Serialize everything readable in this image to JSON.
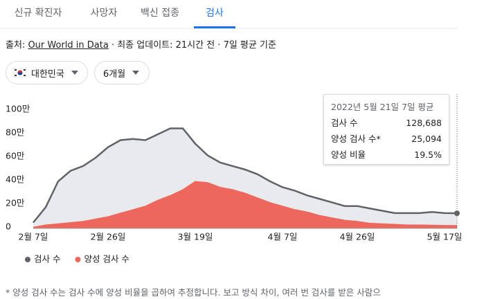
{
  "tabs": [
    "신규 확진자",
    "사망자",
    "백신 접종",
    "검사"
  ],
  "source": {
    "prefix": "출처:",
    "link": "Our World in Data",
    "suffix": "· 최종 업데이트: 21시간 전 · 7일 평균 기준"
  },
  "filters": [
    "대한민국",
    "6개월"
  ],
  "tooltip": {
    "title": "2022년 5월 21일 7일 평균",
    "rows": [
      {
        "label": "검사 수",
        "value": "128,688"
      },
      {
        "label": "양성 검사 수*",
        "value": "25,094"
      },
      {
        "label": "양성 비율",
        "value": "19.5%"
      }
    ]
  },
  "footnote": "* 양성 검사 수는 검사 수에 양성 비율을 곱하여 추정합니다. 보고 방식 차이, 여러 번 검사를 받은 사람으",
  "chart_data": {
    "type": "area",
    "categories": [
      "2월 7일",
      null,
      null,
      null,
      null,
      null,
      "2월 26일",
      null,
      null,
      null,
      null,
      null,
      null,
      "3월 19일",
      null,
      null,
      null,
      null,
      null,
      null,
      "4월 7일",
      null,
      null,
      null,
      null,
      null,
      "4월 26일",
      null,
      null,
      null,
      null,
      null,
      null,
      "5월 17일",
      null
    ],
    "series": [
      {
        "name": "검사 수",
        "color": "#5f6368",
        "fill": "#e8eaed",
        "values": [
          50000,
          180000,
          400000,
          490000,
          530000,
          600000,
          690000,
          750000,
          760000,
          750000,
          800000,
          850000,
          850000,
          720000,
          620000,
          560000,
          530000,
          500000,
          460000,
          400000,
          350000,
          320000,
          280000,
          250000,
          220000,
          190000,
          190000,
          170000,
          150000,
          130000,
          130000,
          130000,
          140000,
          130000,
          128688
        ]
      },
      {
        "name": "양성 검사 수",
        "color": "#ee675c",
        "fill": "#ee675c",
        "values": [
          10000,
          30000,
          40000,
          50000,
          60000,
          80000,
          100000,
          130000,
          160000,
          190000,
          240000,
          280000,
          330000,
          400000,
          390000,
          350000,
          330000,
          300000,
          260000,
          220000,
          190000,
          160000,
          140000,
          110000,
          90000,
          70000,
          60000,
          45000,
          40000,
          35000,
          30000,
          30000,
          28000,
          26000,
          25094
        ]
      }
    ],
    "ylim": [
      0,
      1000000
    ],
    "yticks": [
      0,
      {
        "value": 200000,
        "label": "20만"
      },
      {
        "value": 400000,
        "label": "40만"
      },
      {
        "value": 600000,
        "label": "60만"
      },
      {
        "value": 800000,
        "label": "80만"
      },
      {
        "value": 1000000,
        "label": "100만"
      }
    ],
    "grid": false
  }
}
